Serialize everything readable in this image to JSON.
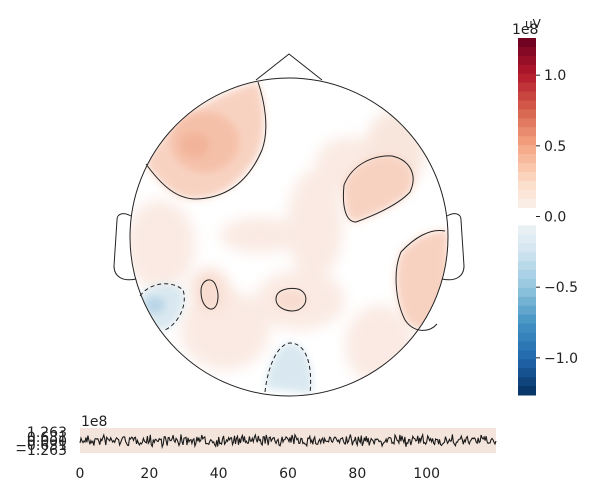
{
  "chart_data": [
    {
      "type": "topomap",
      "contours": [
        {
          "level": "positive",
          "style": "solid"
        },
        {
          "level": "negative",
          "style": "dashed"
        }
      ],
      "colormap": "RdBu_r"
    },
    {
      "type": "colorbar",
      "unit": "uV",
      "multiplier": "1e8",
      "vmin": -1.263,
      "vmax": 1.263,
      "ticks": [
        1.0,
        0.5,
        0.0,
        -0.5,
        -1.0
      ],
      "tick_labels": [
        "1.0",
        "0.5",
        "0.0",
        "−0.5",
        "−1.0"
      ],
      "mask_band": [
        -0.06,
        0.06
      ]
    },
    {
      "type": "line",
      "multiplier": "1e8",
      "xlim": [
        0,
        120
      ],
      "ylim": [
        -1.263,
        1.263
      ],
      "x_ticks": [
        0,
        20,
        40,
        60,
        80,
        100
      ],
      "y_tick_labels": [
        "1.263",
        "0.631",
        "0.000",
        "−0.631",
        "−1.263"
      ],
      "band_color": "#f4e5dc",
      "trace_color": "#1a1a1a"
    }
  ],
  "colors": {
    "head_outline": "#222222",
    "strong_pos": "#f2b39a",
    "mid_pos": "#f8d2c1",
    "weak_pos": "#faeae3",
    "weak_neg": "#d9e8f0",
    "mid_neg": "#b7d4e6"
  }
}
